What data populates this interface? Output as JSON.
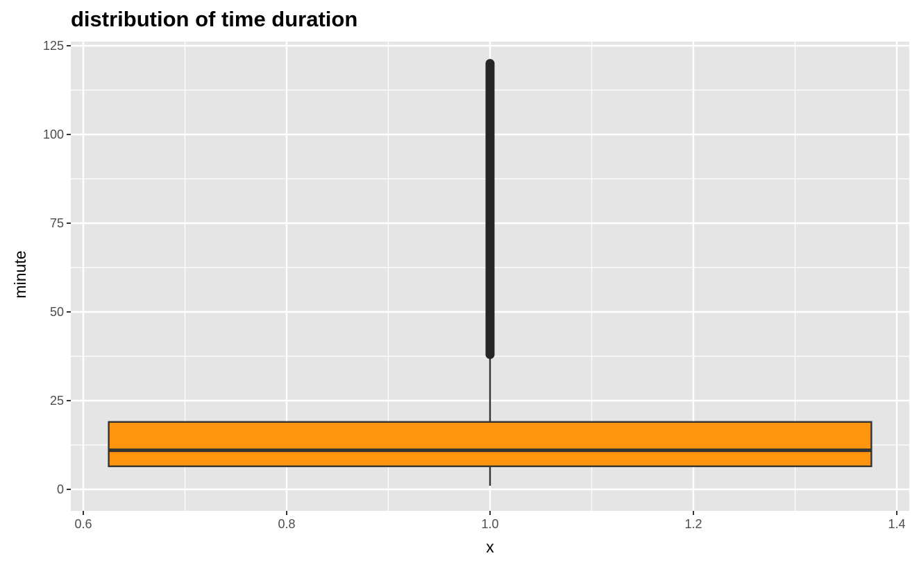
{
  "chart_data": {
    "type": "boxplot",
    "title": "distribution of time duration",
    "xlabel": "x",
    "ylabel": "minute",
    "xlim": [
      0.6,
      1.4
    ],
    "ylim": [
      0,
      125
    ],
    "x_ticks": [
      0.6,
      0.8,
      1.0,
      1.2,
      1.4
    ],
    "x_tick_labels": [
      "0.6",
      "0.8",
      "1.0",
      "1.2",
      "1.4"
    ],
    "y_ticks": [
      0,
      25,
      50,
      75,
      100,
      125
    ],
    "y_tick_labels": [
      "0",
      "25",
      "50",
      "75",
      "100",
      "125"
    ],
    "grid": true,
    "legend": "none",
    "box": {
      "x": 1.0,
      "x_min": 0.625,
      "x_max": 1.375,
      "q1": 6.5,
      "median": 11,
      "q3": 19,
      "whisker_low": 1,
      "whisker_high": 38,
      "outliers_min": 38,
      "outliers_max": 120
    },
    "colors": {
      "box_fill": "#FF950E",
      "box_line": "#333333",
      "panel": "#E5E5E5",
      "grid": "#FFFFFF",
      "outlier": "#262626"
    }
  }
}
